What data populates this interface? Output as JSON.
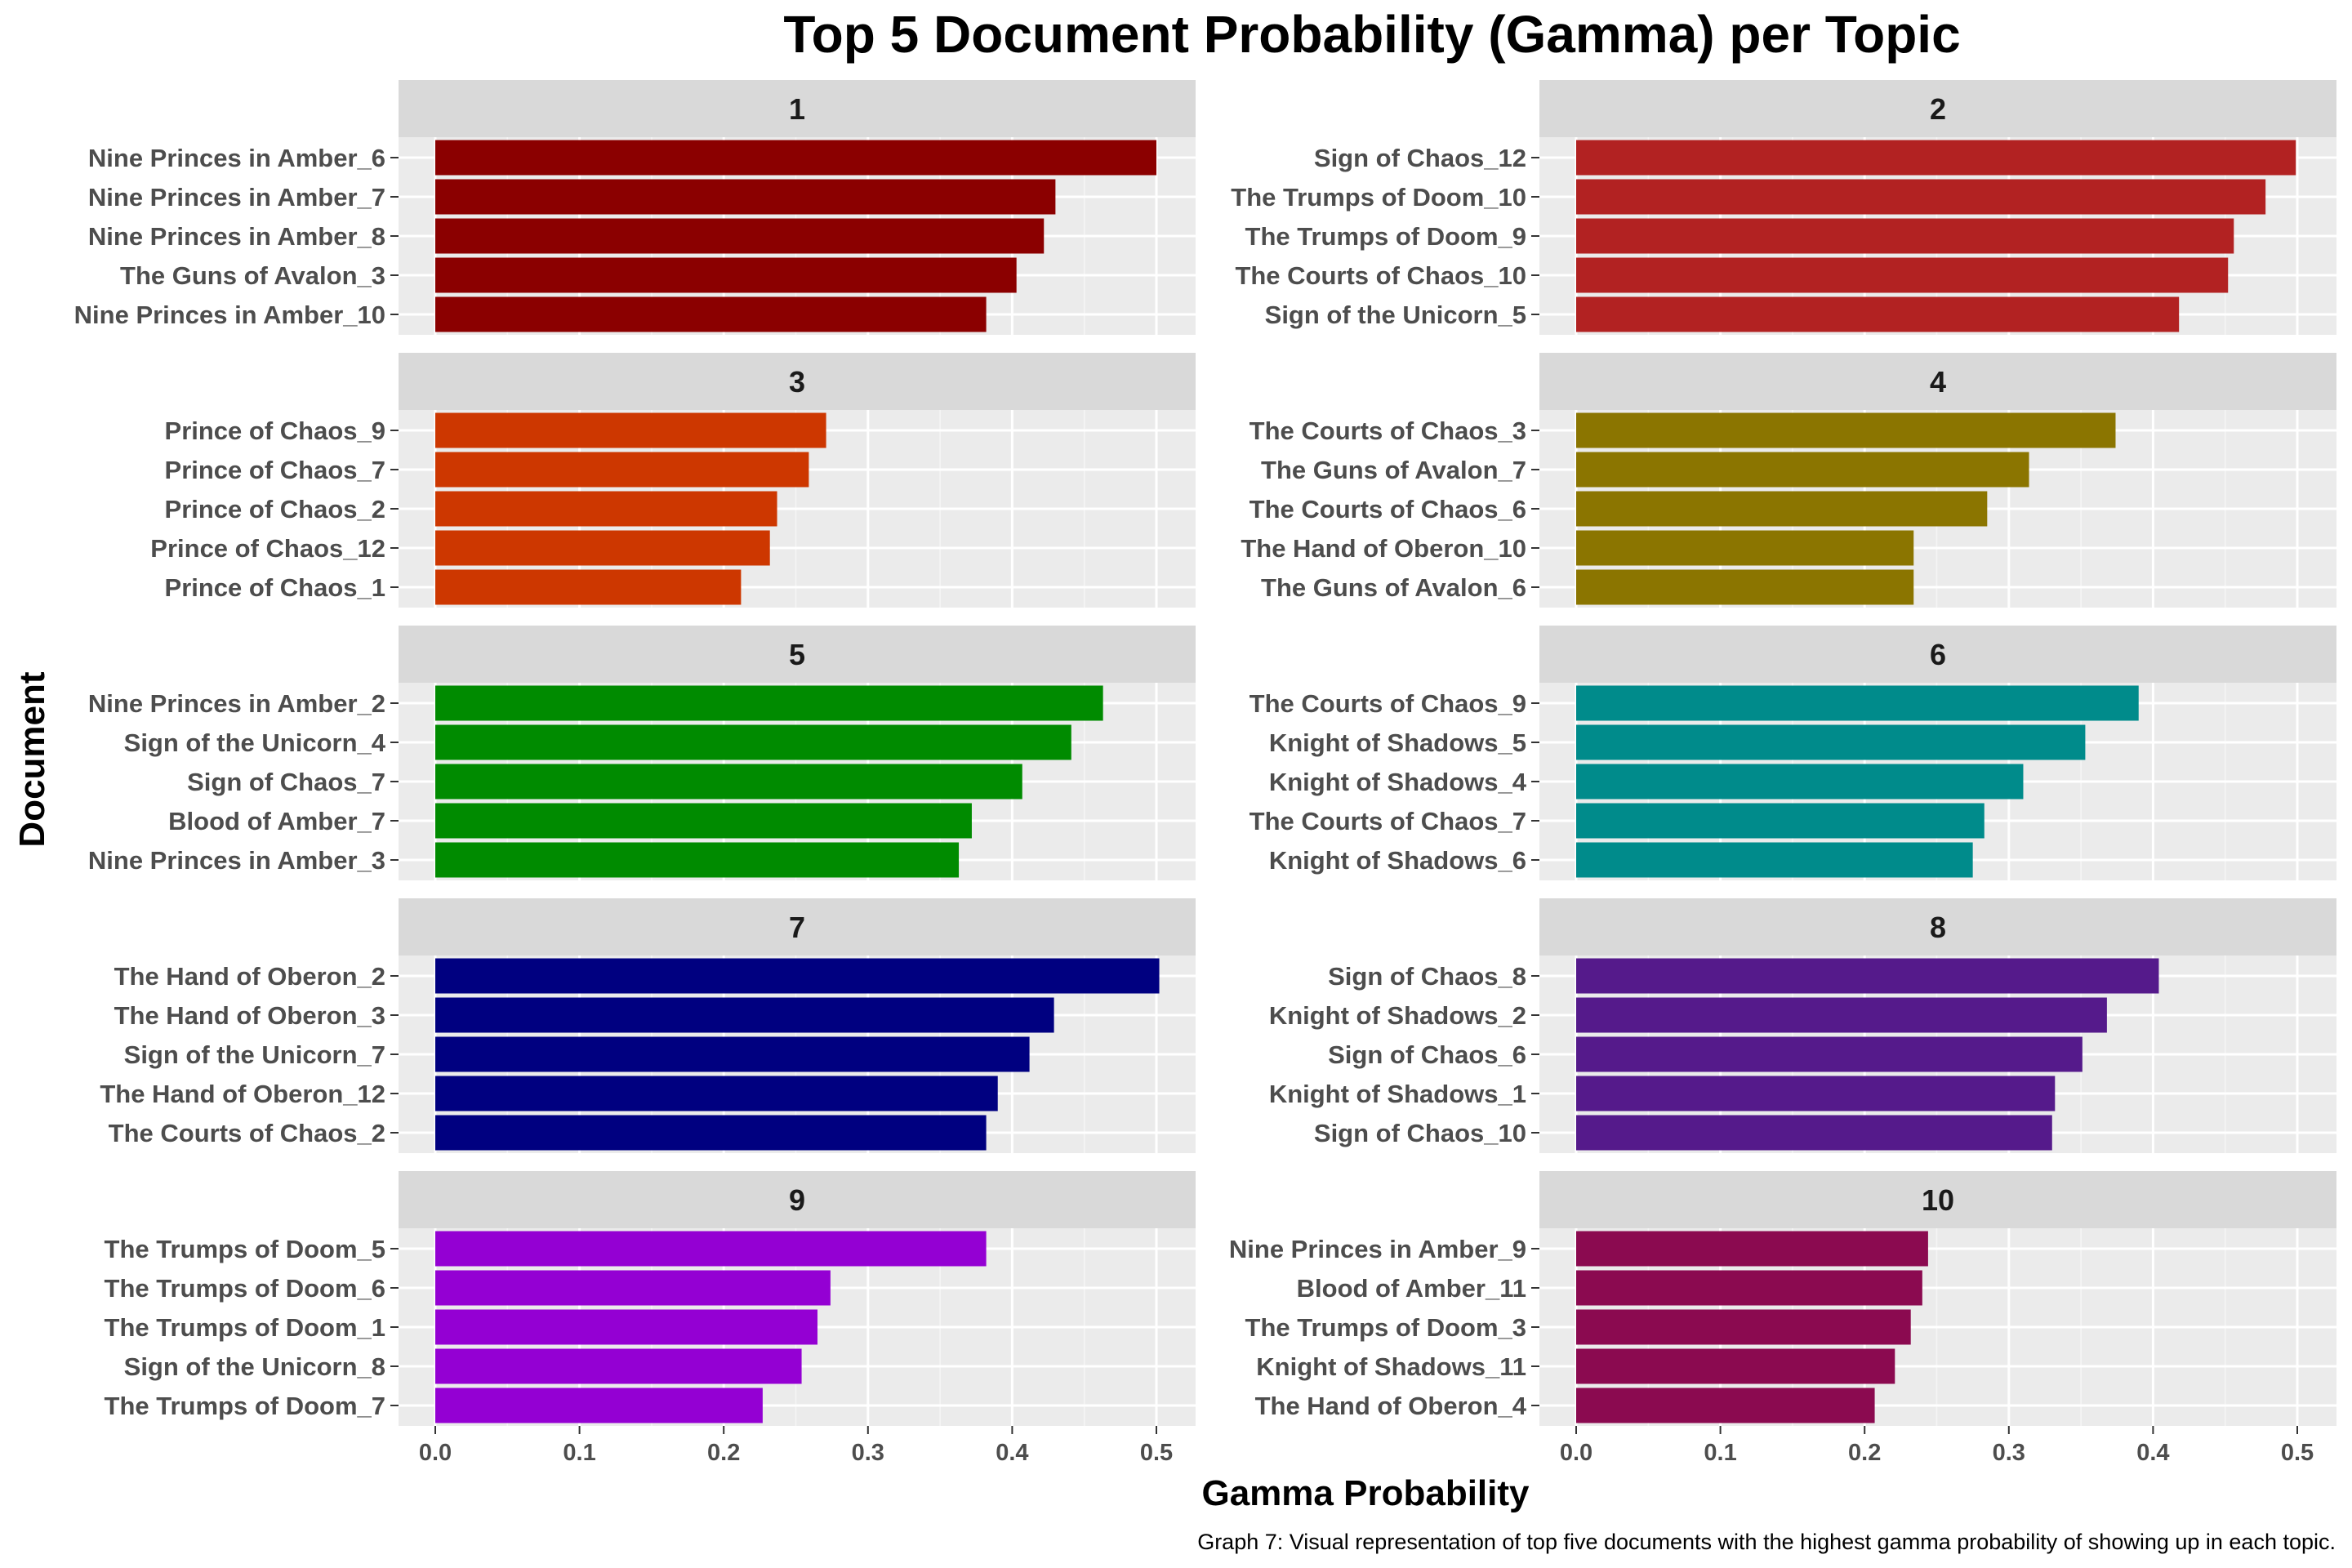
{
  "chart_data": {
    "type": "bar",
    "orientation": "horizontal",
    "title": "Top 5 Document Probability (Gamma) per Topic",
    "xlabel": "Gamma Probability",
    "ylabel": "Document",
    "caption": "Graph 7: Visual representation of top five documents with the highest gamma probability of showing up in each topic.",
    "xlim": [
      0,
      0.5
    ],
    "x_ticks": [
      "0.0",
      "0.1",
      "0.2",
      "0.3",
      "0.4",
      "0.5"
    ],
    "grid": true,
    "legend": "none",
    "facets": [
      {
        "label": "1",
        "color": "#8B0000",
        "categories": [
          "Nine Princes in Amber_6",
          "Nine Princes in Amber_7",
          "Nine Princes in Amber_8",
          "The Guns of Avalon_3",
          "Nine Princes in Amber_10"
        ],
        "values": [
          0.5,
          0.43,
          0.422,
          0.403,
          0.382
        ]
      },
      {
        "label": "2",
        "color": "#B22222",
        "categories": [
          "Sign of Chaos_12",
          "The Trumps of Doom_10",
          "The Trumps of Doom_9",
          "The Courts of Chaos_10",
          "Sign of the Unicorn_5"
        ],
        "values": [
          0.499,
          0.478,
          0.456,
          0.452,
          0.418
        ]
      },
      {
        "label": "3",
        "color": "#CD3700",
        "categories": [
          "Prince of Chaos_9",
          "Prince of Chaos_7",
          "Prince of Chaos_2",
          "Prince of Chaos_12",
          "Prince of Chaos_1"
        ],
        "values": [
          0.271,
          0.259,
          0.237,
          0.232,
          0.212
        ]
      },
      {
        "label": "4",
        "color": "#8B7500",
        "categories": [
          "The Courts of Chaos_3",
          "The Guns of Avalon_7",
          "The Courts of Chaos_6",
          "The Hand of Oberon_10",
          "The Guns of Avalon_6"
        ],
        "values": [
          0.374,
          0.314,
          0.285,
          0.234,
          0.234
        ]
      },
      {
        "label": "5",
        "color": "#008B00",
        "categories": [
          "Nine Princes in Amber_2",
          "Sign of the Unicorn_4",
          "Sign of Chaos_7",
          "Blood of Amber_7",
          "Nine Princes in Amber_3"
        ],
        "values": [
          0.463,
          0.441,
          0.407,
          0.372,
          0.363
        ]
      },
      {
        "label": "6",
        "color": "#008B8B",
        "categories": [
          "The Courts of Chaos_9",
          "Knight of Shadows_5",
          "Knight of Shadows_4",
          "The Courts of Chaos_7",
          "Knight of Shadows_6"
        ],
        "values": [
          0.39,
          0.353,
          0.31,
          0.283,
          0.275
        ]
      },
      {
        "label": "7",
        "color": "#000080",
        "categories": [
          "The Hand of Oberon_2",
          "The Hand of Oberon_3",
          "Sign of the Unicorn_7",
          "The Hand of Oberon_12",
          "The Courts of Chaos_2"
        ],
        "values": [
          0.502,
          0.429,
          0.412,
          0.39,
          0.382
        ]
      },
      {
        "label": "8",
        "color": "#551A8B",
        "categories": [
          "Sign of Chaos_8",
          "Knight of Shadows_2",
          "Sign of Chaos_6",
          "Knight of Shadows_1",
          "Sign of Chaos_10"
        ],
        "values": [
          0.404,
          0.368,
          0.351,
          0.332,
          0.33
        ]
      },
      {
        "label": "9",
        "color": "#9400D3",
        "categories": [
          "The Trumps of Doom_5",
          "The Trumps of Doom_6",
          "The Trumps of Doom_1",
          "Sign of the Unicorn_8",
          "The Trumps of Doom_7"
        ],
        "values": [
          0.382,
          0.274,
          0.265,
          0.254,
          0.227
        ]
      },
      {
        "label": "10",
        "color": "#8B0A50",
        "categories": [
          "Nine Princes in Amber_9",
          "Blood of Amber_11",
          "The Trumps of Doom_3",
          "Knight of Shadows_11",
          "The Hand of Oberon_4"
        ],
        "values": [
          0.244,
          0.24,
          0.232,
          0.221,
          0.207
        ]
      }
    ]
  }
}
